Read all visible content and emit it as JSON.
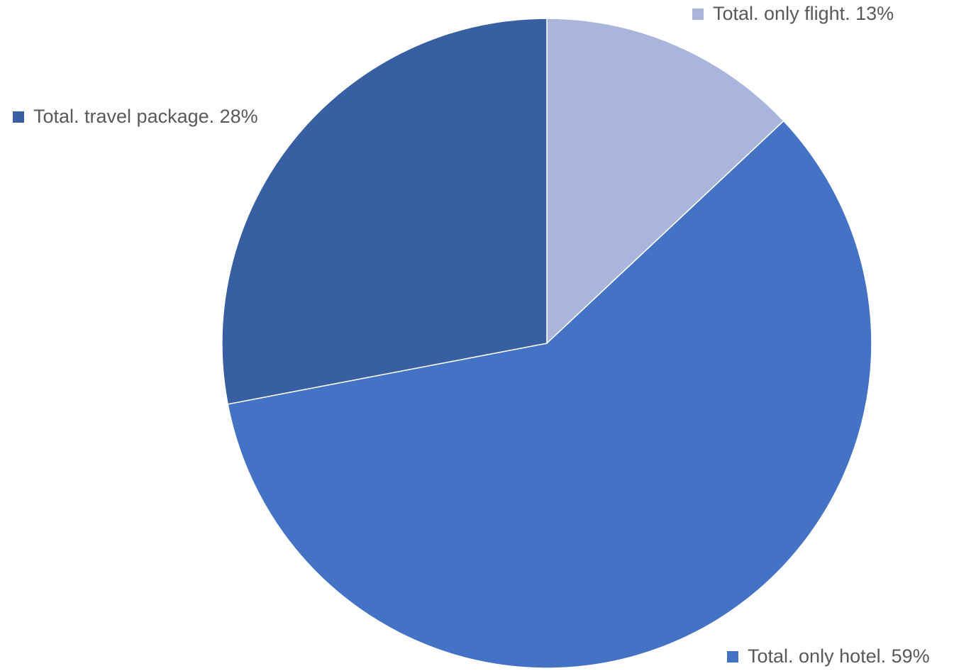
{
  "chart_data": {
    "type": "pie",
    "title": "",
    "slices": [
      {
        "name": "Total",
        "category": "only flight",
        "value": 13,
        "label": "Total. only flight. 13%",
        "color": "#a9b5da"
      },
      {
        "name": "Total",
        "category": "only hotel",
        "value": 59,
        "label": "Total. only hotel. 59%",
        "color": "#4472c4"
      },
      {
        "name": "Total",
        "category": "travel package",
        "value": 28,
        "label": "Total. travel package. 28%",
        "color": "#375fa1"
      }
    ],
    "start_angle_deg": 0,
    "direction": "clockwise",
    "legend": "labels-outside"
  }
}
